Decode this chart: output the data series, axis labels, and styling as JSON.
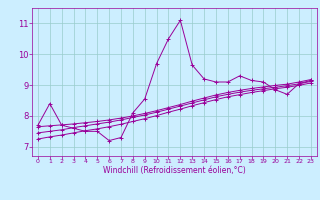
{
  "xlabel": "Windchill (Refroidissement éolien,°C)",
  "bg_color": "#cceeff",
  "grid_color": "#99cccc",
  "line_color": "#990099",
  "xlim": [
    -0.5,
    23.5
  ],
  "ylim": [
    6.7,
    11.5
  ],
  "xticks": [
    0,
    1,
    2,
    3,
    4,
    5,
    6,
    7,
    8,
    9,
    10,
    11,
    12,
    13,
    14,
    15,
    16,
    17,
    18,
    19,
    20,
    21,
    22,
    23
  ],
  "yticks": [
    7,
    8,
    9,
    10,
    11
  ],
  "series": [
    [
      7.7,
      8.4,
      7.7,
      7.6,
      7.5,
      7.5,
      7.2,
      7.3,
      8.1,
      8.55,
      9.7,
      10.5,
      11.1,
      9.65,
      9.2,
      9.1,
      9.1,
      9.3,
      9.15,
      9.1,
      8.85,
      8.7,
      9.05,
      9.15
    ],
    [
      7.65,
      7.68,
      7.71,
      7.74,
      7.78,
      7.82,
      7.87,
      7.93,
      8.0,
      8.08,
      8.17,
      8.27,
      8.37,
      8.48,
      8.58,
      8.68,
      8.76,
      8.83,
      8.89,
      8.94,
      8.99,
      9.03,
      9.1,
      9.18
    ],
    [
      7.45,
      7.5,
      7.55,
      7.62,
      7.68,
      7.74,
      7.8,
      7.87,
      7.95,
      8.03,
      8.12,
      8.22,
      8.32,
      8.42,
      8.52,
      8.62,
      8.7,
      8.77,
      8.83,
      8.88,
      8.93,
      8.98,
      9.04,
      9.12
    ],
    [
      7.25,
      7.32,
      7.38,
      7.45,
      7.52,
      7.58,
      7.65,
      7.73,
      7.82,
      7.91,
      8.01,
      8.12,
      8.22,
      8.33,
      8.43,
      8.53,
      8.62,
      8.69,
      8.76,
      8.82,
      8.88,
      8.93,
      8.99,
      9.07
    ]
  ]
}
